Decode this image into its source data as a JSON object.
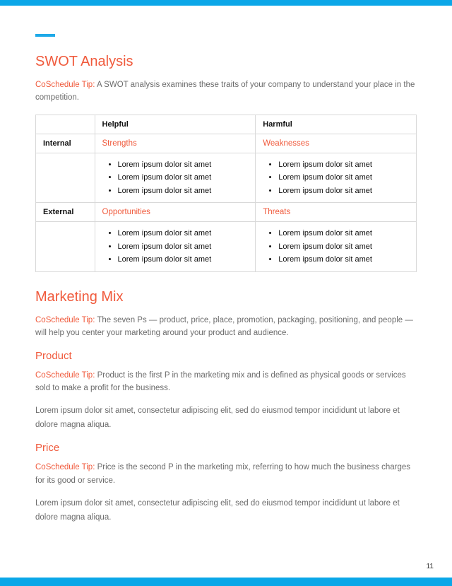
{
  "colors": {
    "brand_blue": "#0ba7e8",
    "accent_orange": "#f05a3c",
    "body_gray": "#6b6b6b",
    "border_gray": "#d9d9d9"
  },
  "page_number": "11",
  "swot": {
    "heading": "SWOT Analysis",
    "tip_label": "CoSchedule Tip:",
    "tip_text": "A SWOT analysis examines these traits of your company to understand your place in the competition.",
    "col_helpful": "Helpful",
    "col_harmful": "Harmful",
    "row_internal": "Internal",
    "row_external": "External",
    "strengths_label": "Strengths",
    "weaknesses_label": "Weaknesses",
    "opportunities_label": "Opportunities",
    "threats_label": "Threats",
    "placeholder": "Lorem ipsum dolor sit amet"
  },
  "marketing": {
    "heading": "Marketing Mix",
    "tip_label": "CoSchedule Tip:",
    "tip_text": "The seven Ps — product, price, place, promotion, packaging, positioning, and people — will help you center your marketing around your product and audience.",
    "product": {
      "heading": "Product",
      "tip_label": "CoSchedule Tip:",
      "tip_text": "Product is the first P in the marketing mix and is defined as physical goods or services sold to make a profit for the business.",
      "body": "Lorem ipsum dolor sit amet, consectetur adipiscing elit, sed do eiusmod tempor incididunt ut labore et dolore magna aliqua."
    },
    "price": {
      "heading": "Price",
      "tip_label": "CoSchedule Tip:",
      "tip_text": "Price is the second P in the marketing mix, referring to how much the business charges for its good or service.",
      "body": "Lorem ipsum dolor sit amet, consectetur adipiscing elit, sed do eiusmod tempor incididunt ut labore et dolore magna aliqua."
    }
  }
}
